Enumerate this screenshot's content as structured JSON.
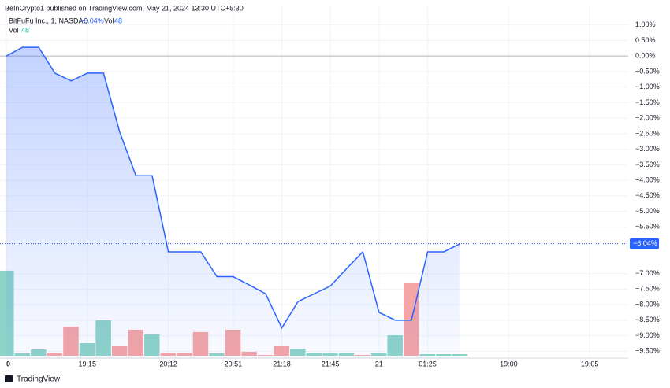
{
  "chart_data": {
    "type": "line",
    "header": "BeInCrypto1 published on TradingView.com, May 21, 2024 13:30 UTC+5:30",
    "symbol": "BitFuFu Inc., 1, NASDAQ",
    "volume_label": "Vol",
    "footer": "TradingView",
    "categories": [
      "0",
      null,
      null,
      null,
      null,
      "19:15",
      null,
      null,
      null,
      null,
      "20:12",
      null,
      null,
      null,
      "20:51",
      null,
      null,
      "21:18",
      null,
      null,
      "21:45",
      null,
      null,
      "21",
      null,
      null,
      "01:25",
      null,
      null,
      null,
      null,
      "19:00",
      null,
      null,
      null,
      null,
      "19:05",
      null,
      null
    ],
    "series": [
      {
        "name": "BitFuFu Inc.",
        "color": "#2962ff",
        "values": [
          0,
          0.28,
          0.28,
          -0.55,
          -0.8,
          -0.55,
          -0.55,
          -2.45,
          -3.85,
          -3.85,
          -6.3,
          -6.3,
          -6.3,
          -7.1,
          -7.1,
          -7.37,
          -7.65,
          -8.75,
          -7.9,
          -7.65,
          -7.4,
          -6.84,
          -6.3,
          -8.25,
          -8.5,
          -8.5,
          -6.3,
          -6.3,
          -6.04,
          null,
          null,
          null,
          null,
          null,
          null,
          null,
          null,
          null,
          null
        ],
        "value_labels": [
          null,
          null,
          null,
          null,
          null,
          null,
          null,
          null,
          null,
          null,
          null,
          null,
          null,
          null,
          null,
          null,
          null,
          null,
          null,
          null,
          null,
          null,
          null,
          null,
          null,
          null,
          null,
          null,
          "−6.04%",
          null,
          null,
          null,
          null,
          null,
          null,
          null,
          null,
          null,
          null
        ]
      }
    ],
    "volume": {
      "values": [
        2592,
        72,
        192,
        96,
        888,
        384,
        1080,
        288,
        792,
        648,
        96,
        96,
        720,
        72,
        792,
        120,
        24,
        288,
        216,
        96,
        96,
        96,
        24,
        96,
        624,
        2208,
        48,
        48,
        48
      ],
      "value_labels": [
        null,
        null,
        null,
        null,
        null,
        null,
        null,
        null,
        null,
        null,
        null,
        null,
        null,
        null,
        null,
        null,
        null,
        null,
        null,
        null,
        null,
        null,
        null,
        null,
        null,
        null,
        null,
        null,
        "48"
      ],
      "colors": [
        "#8fd3c9",
        "#8fd3c9",
        "#8fd3c9",
        "#f5a5a5",
        "#f5a5a5",
        "#8fd3c9",
        "#8fd3c9",
        "#f5a5a5",
        "#f5a5a5",
        "#8fd3c9",
        "#f5a5a5",
        "#f5a5a5",
        "#f5a5a5",
        "#8fd3c9",
        "#f5a5a5",
        "#f5a5a5",
        "#f5a5a5",
        "#f5a5a5",
        "#8fd3c9",
        "#8fd3c9",
        "#8fd3c9",
        "#8fd3c9",
        "#f5a5a5",
        "#8fd3c9",
        "#8fd3c9",
        "#f5a5a5",
        "#8fd3c9",
        "#8fd3c9",
        "#8fd3c9"
      ],
      "ylim": [
        0,
        10000
      ]
    },
    "ylim": [
      -9.72,
      1.6
    ],
    "yticks": [
      {
        "value": 1,
        "label": "1.00%"
      },
      {
        "value": 0.5,
        "label": "0.50%"
      },
      {
        "value": 0,
        "label": "0.00%"
      },
      {
        "value": -0.5,
        "label": "−0.50%"
      },
      {
        "value": -1,
        "label": "−1.00%"
      },
      {
        "value": -1.5,
        "label": "−1.50%"
      },
      {
        "value": -2,
        "label": "−2.00%"
      },
      {
        "value": -2.5,
        "label": "−2.50%"
      },
      {
        "value": -3,
        "label": "−3.00%"
      },
      {
        "value": -3.5,
        "label": "−3.50%"
      },
      {
        "value": -4,
        "label": "−4.00%"
      },
      {
        "value": -4.5,
        "label": "−4.50%"
      },
      {
        "value": -5,
        "label": "−5.00%"
      },
      {
        "value": -5.5,
        "label": "−5.50%"
      },
      {
        "value": -7,
        "label": "−7.00%"
      },
      {
        "value": -7.5,
        "label": "−7.50%"
      },
      {
        "value": -8,
        "label": "−8.00%"
      },
      {
        "value": -8.5,
        "label": "−8.50%"
      },
      {
        "value": -9,
        "label": "−9.00%"
      },
      {
        "value": -9.5,
        "label": "−9.50%"
      }
    ],
    "grid": true
  }
}
